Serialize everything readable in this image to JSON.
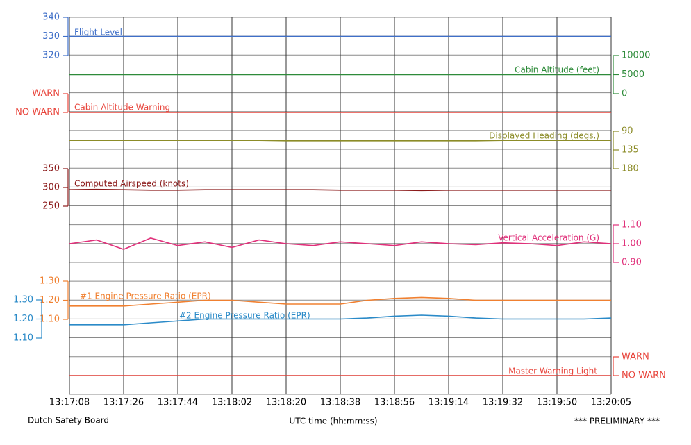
{
  "chart_data": {
    "type": "line",
    "source": "Dutch Safety Board",
    "x_label": "UTC time (hh:mm:ss)",
    "note": "*** PRELIMINARY ***",
    "categories": [
      "13:17:08",
      null,
      "13:17:26",
      null,
      "13:17:44",
      null,
      "13:18:02",
      null,
      "13:18:20",
      null,
      "13:18:38",
      null,
      "13:18:56",
      null,
      "13:19:14",
      null,
      "13:19:32",
      null,
      "13:19:50",
      null,
      "13:20:05"
    ],
    "series": [
      {
        "name": "Flight Level",
        "color": "#3f6fc8",
        "axis": "left",
        "ylim": [
          320,
          340
        ],
        "yticks": [
          320,
          330,
          340
        ],
        "values": [
          330,
          330,
          330,
          330,
          330,
          330,
          330,
          330,
          330,
          330,
          330,
          330,
          330,
          330,
          330,
          330,
          330,
          330,
          330,
          330,
          330
        ]
      },
      {
        "name": "Cabin Altitude (feet)",
        "color": "#2e8b3a",
        "axis": "right",
        "ylim": [
          0,
          10000
        ],
        "yticks": [
          0,
          5000,
          10000
        ],
        "values": [
          5000,
          5000,
          5000,
          5000,
          5000,
          5000,
          5000,
          5000,
          5000,
          5000,
          5000,
          5000,
          5000,
          5000,
          5000,
          5000,
          5000,
          5000,
          5000,
          5000,
          5000
        ]
      },
      {
        "name": "Cabin Altitude Warning",
        "color": "#e8453c",
        "axis": "left",
        "ylim": [
          0,
          1
        ],
        "yticks": [
          {
            "value": 1,
            "label": "WARN"
          },
          {
            "value": 0,
            "label": "NO WARN"
          }
        ],
        "values": [
          0,
          0,
          0,
          0,
          0,
          0,
          0,
          0,
          0,
          0,
          0,
          0,
          0,
          0,
          0,
          0,
          0,
          0,
          0,
          0,
          0
        ]
      },
      {
        "name": "Displayed Heading (degs.)",
        "color": "#8c8c28",
        "axis": "right",
        "ylim": [
          180,
          90
        ],
        "yticks": [
          90,
          135,
          180
        ],
        "values": [
          112,
          112,
          112,
          112,
          112,
          112,
          112,
          112,
          113,
          113,
          113,
          113,
          113,
          113,
          113,
          113,
          112,
          112,
          112,
          112,
          112
        ]
      },
      {
        "name": "Computed Airspeed (knots)",
        "color": "#8b1a1a",
        "axis": "left",
        "ylim": [
          250,
          350
        ],
        "yticks": [
          250,
          300,
          350
        ],
        "values": [
          294,
          295,
          294,
          293,
          293,
          294,
          294,
          294,
          294,
          294,
          293,
          293,
          293,
          292,
          293,
          293,
          293,
          293,
          293,
          293,
          293
        ]
      },
      {
        "name": "Vertical Acceleration (G)",
        "color": "#e0307a",
        "axis": "right",
        "ylim": [
          0.9,
          1.1
        ],
        "yticks": [
          {
            "value": 0.9,
            "label": "0.90"
          },
          {
            "value": 1.0,
            "label": "1.00"
          },
          {
            "value": 1.1,
            "label": "1.10"
          }
        ],
        "values": [
          1.0,
          1.02,
          0.97,
          1.03,
          0.99,
          1.01,
          0.98,
          1.02,
          1.0,
          0.99,
          1.01,
          1.0,
          0.99,
          1.01,
          1.0,
          0.995,
          1.005,
          1.0,
          0.99,
          1.01,
          1.0
        ]
      },
      {
        "name": "#1 Engine Pressure Ratio (EPR)",
        "color": "#f08030",
        "axis": "left",
        "ylim": [
          1.1,
          1.3
        ],
        "yticks": [
          {
            "value": 1.1,
            "label": "1.10"
          },
          {
            "value": 1.2,
            "label": "1.20"
          },
          {
            "value": 1.3,
            "label": "1.30"
          }
        ],
        "values": [
          1.17,
          1.17,
          1.17,
          1.18,
          1.19,
          1.2,
          1.2,
          1.19,
          1.18,
          1.18,
          1.18,
          1.2,
          1.21,
          1.215,
          1.21,
          1.2,
          1.2,
          1.2,
          1.2,
          1.2,
          1.2
        ]
      },
      {
        "name": "#2 Engine Pressure Ratio (EPR)",
        "color": "#2a8ac8",
        "axis": "left",
        "ylim": [
          1.1,
          1.3
        ],
        "yticks": [
          {
            "value": 1.1,
            "label": "1.10"
          },
          {
            "value": 1.2,
            "label": "1.20"
          },
          {
            "value": 1.3,
            "label": "1.30"
          }
        ],
        "values": [
          1.17,
          1.17,
          1.17,
          1.18,
          1.19,
          1.2,
          1.2,
          1.2,
          1.2,
          1.2,
          1.2,
          1.205,
          1.215,
          1.22,
          1.215,
          1.205,
          1.2,
          1.2,
          1.2,
          1.2,
          1.205
        ]
      },
      {
        "name": "Master Warning Light",
        "color": "#e8453c",
        "axis": "right",
        "ylim": [
          0,
          1
        ],
        "yticks": [
          {
            "value": 1,
            "label": "WARN"
          },
          {
            "value": 0,
            "label": "NO WARN"
          }
        ],
        "values": [
          0,
          0,
          0,
          0,
          0,
          0,
          0,
          0,
          0,
          0,
          0,
          0,
          0,
          0,
          0,
          0,
          0,
          0,
          0,
          0,
          0
        ]
      }
    ]
  }
}
